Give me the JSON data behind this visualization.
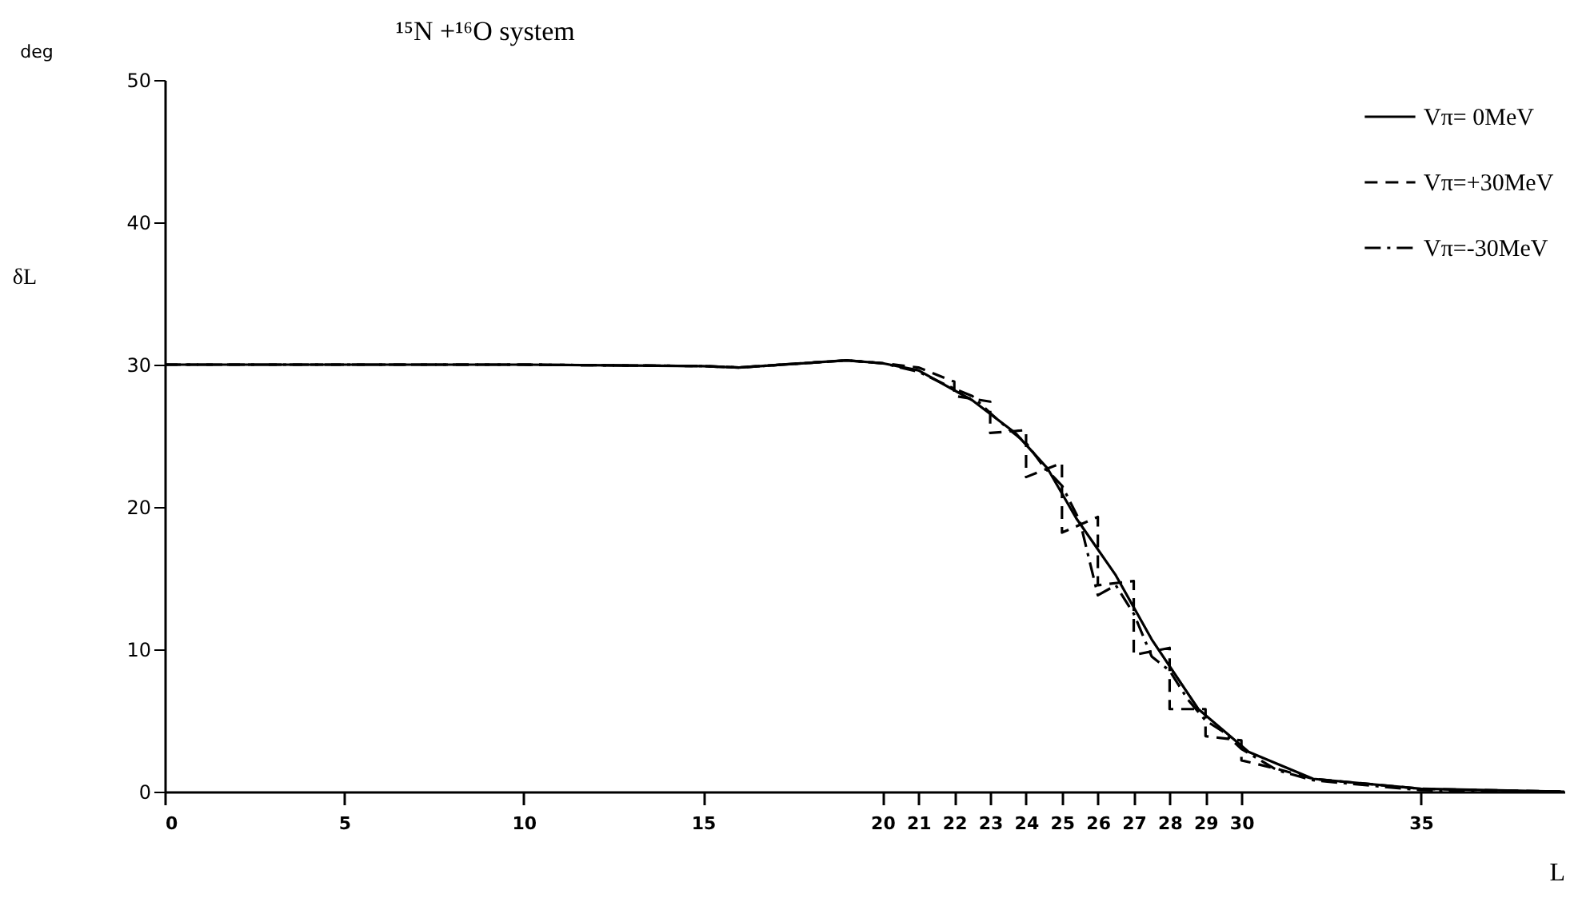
{
  "chart_data": {
    "type": "line",
    "title": "¹⁵N +¹⁶O system",
    "xlabel": "L",
    "ylabel": "δL",
    "annotations": [
      "deg"
    ],
    "xlim": [
      0,
      39
    ],
    "xticks": [
      0,
      5,
      10,
      15,
      20,
      21,
      22,
      23,
      24,
      25,
      26,
      27,
      28,
      29,
      30,
      35
    ],
    "ylim": [
      0,
      50
    ],
    "yticks": [
      0,
      10,
      20,
      30,
      40,
      50
    ],
    "grid": false,
    "legend": "top right",
    "series": [
      {
        "name": "Vπ= 0MeV",
        "color": "#000000",
        "line_style": "solid",
        "x": [
          0,
          10,
          15,
          16,
          19,
          20,
          21,
          22.5,
          23.7,
          24.6,
          25.4,
          26.5,
          27.5,
          28.8,
          30.2,
          32,
          35,
          39
        ],
        "values": [
          30,
          30,
          29.9,
          29.8,
          30.3,
          30.1,
          29.6,
          27.5,
          25.2,
          22.7,
          19.2,
          15.2,
          10.7,
          5.8,
          2.8,
          0.9,
          0.2,
          0
        ]
      },
      {
        "name": "Vπ=+30MeV",
        "color": "#000000",
        "line_style": "dashed",
        "x": [
          0,
          10,
          15,
          16,
          19,
          20,
          21,
          22,
          22,
          23,
          23,
          24,
          24,
          25,
          25,
          26,
          26,
          27,
          27,
          28,
          28,
          29,
          29,
          30,
          30,
          31,
          32,
          35,
          39
        ],
        "values": [
          30,
          30,
          29.9,
          29.8,
          30.3,
          30.1,
          29.8,
          28.8,
          27.8,
          27.4,
          25.2,
          25.4,
          22.1,
          23.1,
          18.2,
          19.3,
          14.5,
          14.8,
          9.6,
          10.1,
          5.8,
          5.8,
          3.9,
          3.6,
          2.2,
          1.6,
          0.9,
          0.2,
          0
        ]
      },
      {
        "name": "Vπ=-30MeV",
        "color": "#000000",
        "line_style": "dashdot",
        "x": [
          0,
          10,
          15,
          16,
          19,
          20,
          21,
          22,
          22.5,
          23,
          23.5,
          24,
          24.5,
          25,
          25.5,
          26,
          26.5,
          27,
          27.5,
          28,
          28.5,
          29,
          29.5,
          30,
          31,
          32,
          35,
          39
        ],
        "values": [
          30,
          30,
          29.9,
          29.8,
          30.3,
          30.1,
          29.5,
          28.3,
          27.8,
          26.6,
          25.5,
          24.5,
          22.8,
          21.5,
          19,
          13.8,
          14.5,
          12.5,
          9.5,
          8.5,
          6.5,
          5,
          4.2,
          3,
          1.5,
          0.8,
          0.1,
          0
        ]
      }
    ]
  }
}
